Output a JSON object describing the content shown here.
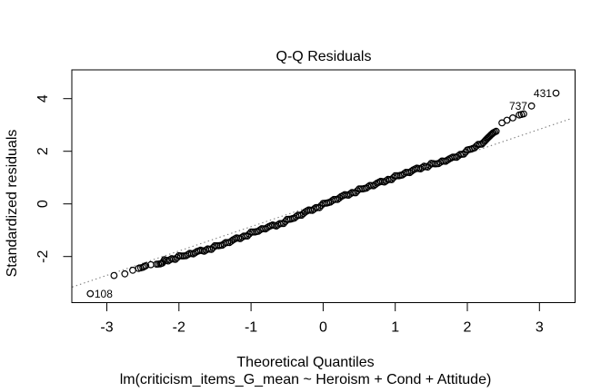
{
  "figure": {
    "title": "Q-Q Residuals",
    "x_axis_label": "Theoretical Quantiles",
    "y_axis_label": "Standardized residuals",
    "caption": "lm(criticism_items_G_mean ~ Heroism + Cond + Attitude)"
  },
  "colors": {
    "background": "#ffffff",
    "points": "#000000",
    "axis": "#000000",
    "text": "#000000",
    "ref_line": "#7a7a7a"
  },
  "chart_data": {
    "type": "scatter",
    "title": "Q-Q Residuals",
    "xlabel": "Theoretical Quantiles",
    "ylabel": "Standardized residuals",
    "subtitle": "lm(criticism_items_G_mean ~ Heroism + Cond + Attitude)",
    "x_ticks": [
      -3,
      -2,
      -1,
      0,
      1,
      2,
      3
    ],
    "y_ticks": [
      -2,
      0,
      2,
      4
    ],
    "xlim": [
      -3.48,
      3.5
    ],
    "ylim": [
      -3.72,
      5.1
    ],
    "grid": false,
    "legend": null,
    "marker": "open-circle",
    "ref_line": {
      "type": "qqline",
      "style": "dotted",
      "slope": 0.925,
      "intercept": 0.06,
      "x_range": [
        -3.48,
        3.44
      ]
    },
    "labeled_points": [
      {
        "label": "108",
        "x": -3.23,
        "y": -3.41,
        "label_side": "right"
      },
      {
        "label": "737",
        "x": 2.89,
        "y": 3.72,
        "label_side": "left"
      },
      {
        "label": "431",
        "x": 3.23,
        "y": 4.21,
        "label_side": "left"
      }
    ],
    "points": [
      [
        -2.9,
        -2.72
      ],
      [
        -2.75,
        -2.66
      ],
      [
        -2.64,
        -2.52
      ],
      [
        -2.56,
        -2.45
      ],
      [
        -2.5,
        -2.41
      ],
      [
        -2.46,
        -2.35
      ],
      [
        -2.39,
        -2.31
      ],
      [
        -2.31,
        -2.29
      ],
      [
        -2.26,
        -2.28
      ],
      [
        -2.23,
        -2.25
      ],
      [
        -2.2,
        -2.12
      ],
      [
        -2.15,
        -2.17
      ],
      [
        -2.1,
        -2.08
      ],
      [
        -2.05,
        -2.11
      ],
      [
        -2.0,
        -1.97
      ],
      [
        -1.95,
        -1.98
      ],
      [
        -1.9,
        -1.97
      ],
      [
        -1.85,
        -1.88
      ],
      [
        -1.8,
        -1.9
      ],
      [
        -1.75,
        -1.81
      ],
      [
        -1.7,
        -1.76
      ],
      [
        -1.65,
        -1.8
      ],
      [
        -1.6,
        -1.71
      ],
      [
        -1.55,
        -1.73
      ],
      [
        -1.5,
        -1.59
      ],
      [
        -1.45,
        -1.59
      ],
      [
        -1.4,
        -1.57
      ],
      [
        -1.35,
        -1.47
      ],
      [
        -1.3,
        -1.47
      ],
      [
        -1.25,
        -1.37
      ],
      [
        -1.2,
        -1.29
      ],
      [
        -1.15,
        -1.32
      ],
      [
        -1.1,
        -1.22
      ],
      [
        -1.05,
        -1.22
      ],
      [
        -1.0,
        -1.07
      ],
      [
        -0.95,
        -1.07
      ],
      [
        -0.9,
        -1.04
      ],
      [
        -0.85,
        -0.94
      ],
      [
        -0.8,
        -0.95
      ],
      [
        -0.75,
        -0.86
      ],
      [
        -0.7,
        -0.8
      ],
      [
        -0.65,
        -0.84
      ],
      [
        -0.6,
        -0.75
      ],
      [
        -0.55,
        -0.75
      ],
      [
        -0.5,
        -0.59
      ],
      [
        -0.45,
        -0.58
      ],
      [
        -0.4,
        -0.54
      ],
      [
        -0.35,
        -0.43
      ],
      [
        -0.3,
        -0.43
      ],
      [
        -0.25,
        -0.31
      ],
      [
        -0.2,
        -0.23
      ],
      [
        -0.15,
        -0.25
      ],
      [
        -0.1,
        -0.14
      ],
      [
        -0.05,
        -0.14
      ],
      [
        0.0,
        0.02
      ],
      [
        0.05,
        0.03
      ],
      [
        0.1,
        0.07
      ],
      [
        0.15,
        0.17
      ],
      [
        0.2,
        0.17
      ],
      [
        0.25,
        0.28
      ],
      [
        0.3,
        0.35
      ],
      [
        0.35,
        0.33
      ],
      [
        0.4,
        0.43
      ],
      [
        0.45,
        0.42
      ],
      [
        0.5,
        0.57
      ],
      [
        0.55,
        0.57
      ],
      [
        0.6,
        0.6
      ],
      [
        0.65,
        0.7
      ],
      [
        0.7,
        0.69
      ],
      [
        0.75,
        0.79
      ],
      [
        0.8,
        0.86
      ],
      [
        0.85,
        0.83
      ],
      [
        0.9,
        0.93
      ],
      [
        0.95,
        0.92
      ],
      [
        1.0,
        1.07
      ],
      [
        1.05,
        1.07
      ],
      [
        1.1,
        1.1
      ],
      [
        1.15,
        1.2
      ],
      [
        1.2,
        1.19
      ],
      [
        1.25,
        1.29
      ],
      [
        1.3,
        1.36
      ],
      [
        1.35,
        1.33
      ],
      [
        1.4,
        1.43
      ],
      [
        1.45,
        1.4
      ],
      [
        1.5,
        1.54
      ],
      [
        1.55,
        1.52
      ],
      [
        1.6,
        1.53
      ],
      [
        1.65,
        1.63
      ],
      [
        1.7,
        1.62
      ],
      [
        1.75,
        1.71
      ],
      [
        1.8,
        1.78
      ],
      [
        1.85,
        1.77
      ],
      [
        1.9,
        1.88
      ],
      [
        1.95,
        1.89
      ],
      [
        2.0,
        2.05
      ],
      [
        2.05,
        2.08
      ],
      [
        2.1,
        2.13
      ],
      [
        2.15,
        2.26
      ],
      [
        2.2,
        2.27
      ],
      [
        2.24,
        2.38
      ],
      [
        2.27,
        2.47
      ],
      [
        2.3,
        2.55
      ],
      [
        2.33,
        2.63
      ],
      [
        2.36,
        2.7
      ],
      [
        2.4,
        2.76
      ],
      [
        2.48,
        3.08
      ],
      [
        2.55,
        3.18
      ],
      [
        2.63,
        3.27
      ],
      [
        2.72,
        3.38
      ],
      [
        2.78,
        3.42
      ]
    ]
  }
}
